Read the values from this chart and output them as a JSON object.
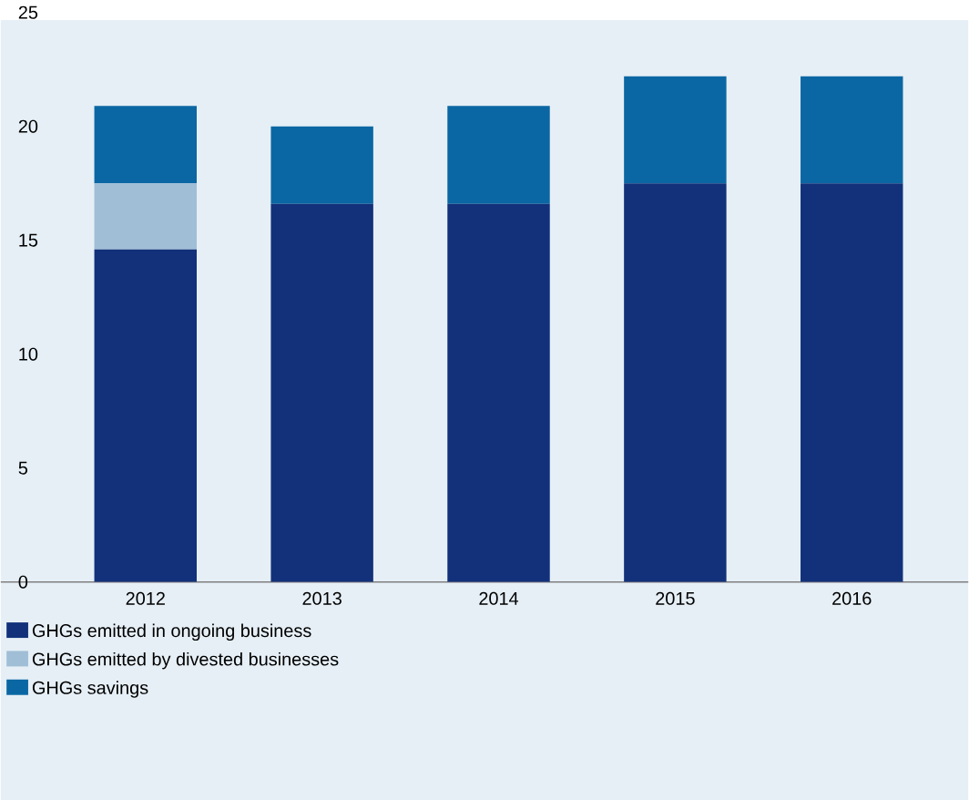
{
  "chart_data": {
    "type": "bar",
    "stacked": true,
    "categories": [
      "2012",
      "2013",
      "2014",
      "2015",
      "2016"
    ],
    "series": [
      {
        "name": "GHGs emitted in ongoing business",
        "color": "#12317a",
        "values": [
          14.6,
          16.6,
          16.6,
          17.5,
          17.5
        ]
      },
      {
        "name": "GHGs emitted by divested businesses",
        "color": "#a0bed6",
        "values": [
          2.9,
          0,
          0,
          0,
          0
        ]
      },
      {
        "name": "GHGs savings",
        "color": "#0b67a3",
        "values": [
          3.4,
          3.4,
          4.3,
          4.7,
          4.7
        ]
      }
    ],
    "ylim": [
      0,
      25
    ],
    "yticks": [
      0,
      5,
      10,
      15,
      20,
      25
    ],
    "grid": false,
    "legend": "bottom"
  }
}
